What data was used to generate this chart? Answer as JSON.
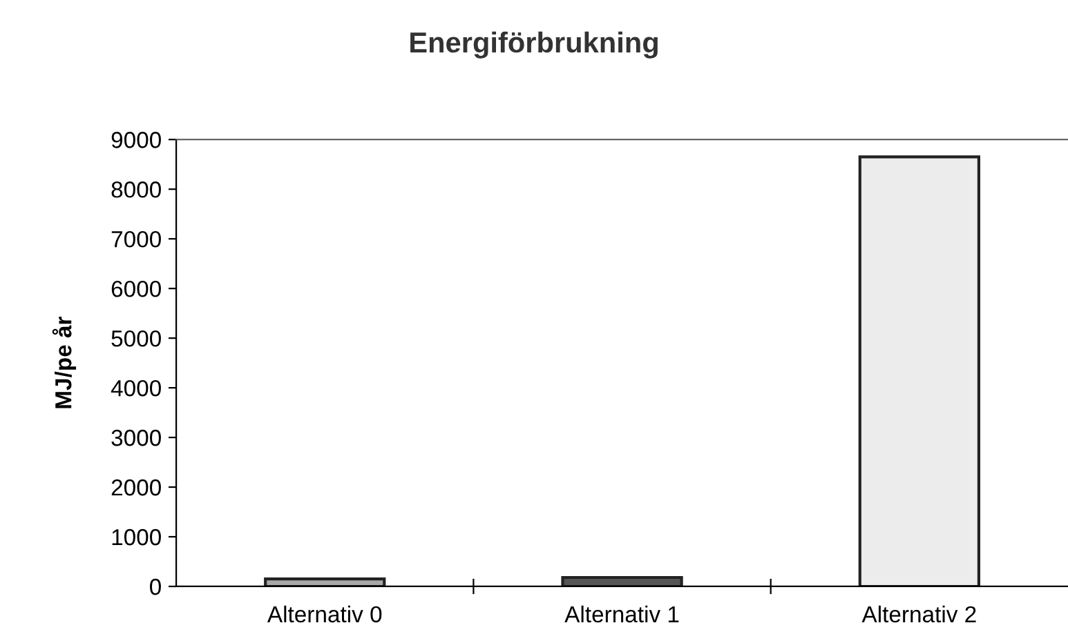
{
  "chart_data": {
    "type": "bar",
    "title": "Energiförbrukning",
    "ylabel": "MJ/pe år",
    "categories": [
      "Alternativ 0",
      "Alternativ 1",
      "Alternativ 2"
    ],
    "values": [
      150,
      180,
      8650
    ],
    "colors": [
      "#a8a8a8",
      "#555555",
      "#ececec"
    ],
    "ylim": [
      0,
      9000
    ],
    "yticks": [
      0,
      1000,
      2000,
      3000,
      4000,
      5000,
      6000,
      7000,
      8000,
      9000
    ],
    "grid": false,
    "legend": false
  }
}
